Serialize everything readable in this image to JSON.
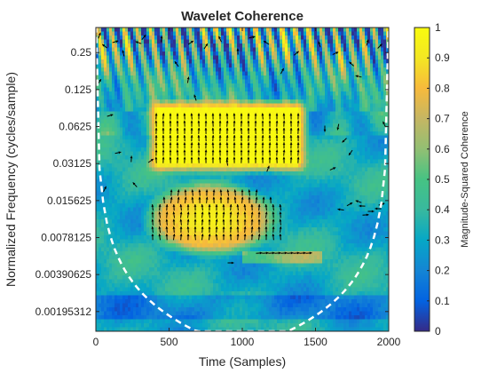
{
  "chart_data": {
    "type": "heatmap",
    "title": "Wavelet Coherence",
    "xlabel": "Time (Samples)",
    "ylabel": "Normalized Frequency  (cycles/sample)",
    "colorbar_label": "Magnitude-Squared Coherence",
    "x_ticks": [
      0,
      500,
      1000,
      1500,
      2000
    ],
    "xlim": [
      0,
      2000
    ],
    "y_scale": "log2",
    "y_ticks": [
      {
        "value": 0.25,
        "label": "0.25"
      },
      {
        "value": 0.125,
        "label": "0.125"
      },
      {
        "value": 0.0625,
        "label": "0.0625"
      },
      {
        "value": 0.03125,
        "label": "0.03125"
      },
      {
        "value": 0.015625,
        "label": "0.015625"
      },
      {
        "value": 0.0078125,
        "label": "0.0078125"
      },
      {
        "value": 0.00390625,
        "label": "0.00390625"
      },
      {
        "value": 0.00195312,
        "label": "0.00195312"
      }
    ],
    "ylim": [
      0.00135,
      0.4
    ],
    "colorbar": {
      "range": [
        0,
        1
      ],
      "ticks": [
        "0",
        "0.1",
        "0.2",
        "0.3",
        "0.4",
        "0.5",
        "0.6",
        "0.7",
        "0.8",
        "0.9",
        "1"
      ],
      "colormap": "parula"
    },
    "regions": [
      {
        "name": "high coherence block 1",
        "x": [
          400,
          1400
        ],
        "freq": [
          0.03,
          0.09
        ],
        "coherence": 1.0,
        "phase_arrows": "up"
      },
      {
        "name": "high coherence block 2",
        "x": [
          400,
          1200
        ],
        "freq": [
          0.0068,
          0.02
        ],
        "coherence_center": 0.8,
        "phase_arrows": "up"
      },
      {
        "name": "phase arrows band",
        "x": [
          1100,
          1500
        ],
        "freq": [
          0.0052,
          0.0058
        ],
        "phase_arrows": "right"
      }
    ],
    "grid": false,
    "cone_of_influence": "dashed white"
  }
}
